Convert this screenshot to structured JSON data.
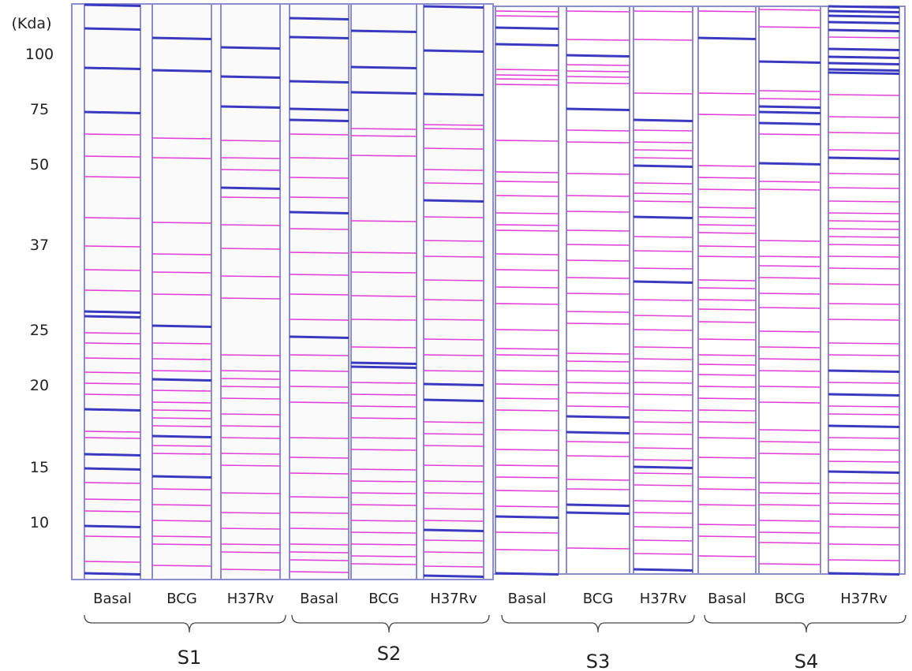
{
  "y_axis": {
    "unit": "(Kda)",
    "labels": [
      "100",
      "75",
      "50",
      "37",
      "25",
      "20",
      "15",
      "10"
    ]
  },
  "lanes": [
    "Basal",
    "BCG",
    "H37Rv",
    "Basal",
    "BCG",
    "H37Rv",
    "Basal",
    "BCG",
    "H37Rv",
    "Basal",
    "BCG",
    "H37Rv"
  ],
  "groups": [
    "S1",
    "S2",
    "S3",
    "S4"
  ]
}
